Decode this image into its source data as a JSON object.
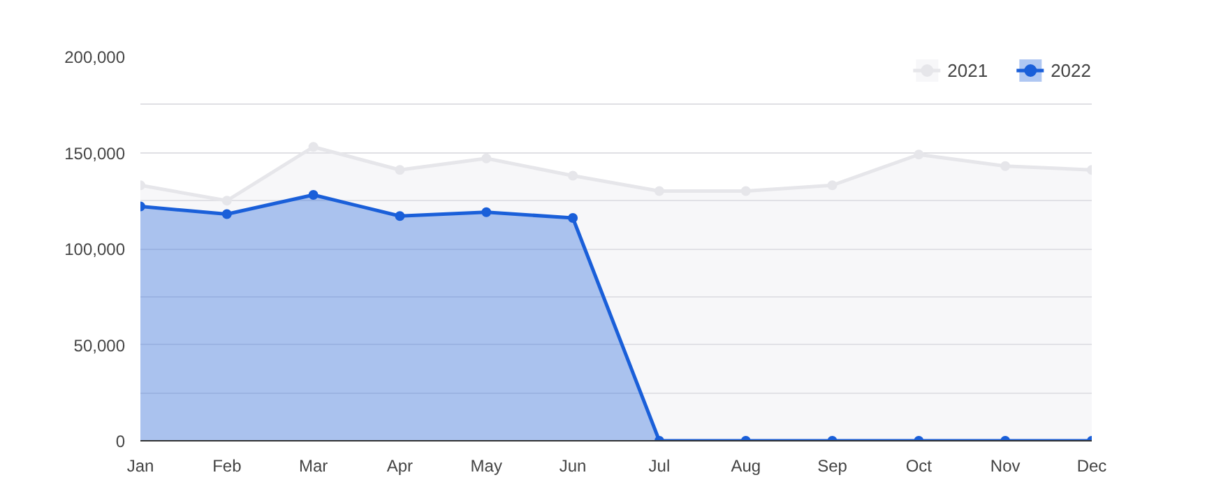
{
  "chart_data": {
    "type": "area",
    "categories": [
      "Jan",
      "Feb",
      "Mar",
      "Apr",
      "May",
      "Jun",
      "Jul",
      "Aug",
      "Sep",
      "Oct",
      "Nov",
      "Dec"
    ],
    "series": [
      {
        "name": "2021",
        "color": "#e6e6ea",
        "values": [
          133000,
          125000,
          153000,
          141000,
          147000,
          138000,
          130000,
          130000,
          133000,
          149000,
          143000,
          141000
        ]
      },
      {
        "name": "2022",
        "color": "#1a5fd9",
        "values": [
          122000,
          118000,
          128000,
          117000,
          119000,
          116000,
          0,
          0,
          0,
          0,
          0,
          0
        ]
      }
    ],
    "ylim": [
      0,
      200000
    ],
    "yticks": [
      {
        "value": 0,
        "label": "0"
      },
      {
        "value": 25000,
        "label": null
      },
      {
        "value": 50000,
        "label": "50,000"
      },
      {
        "value": 75000,
        "label": null
      },
      {
        "value": 100000,
        "label": "100,000"
      },
      {
        "value": 125000,
        "label": null
      },
      {
        "value": 150000,
        "label": "150,000"
      },
      {
        "value": 175000,
        "label": null
      },
      {
        "value": 200000,
        "label": "200,000"
      }
    ],
    "grid": "y",
    "legend": "top right",
    "marker": "circle",
    "line_style": "solid"
  }
}
